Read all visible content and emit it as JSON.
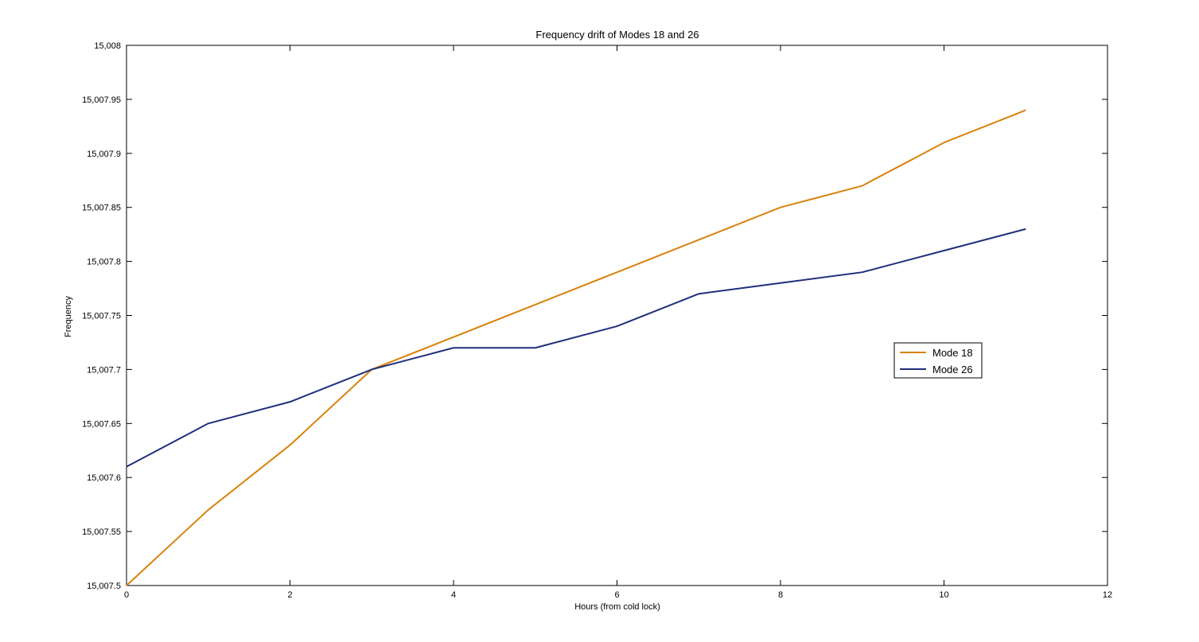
{
  "chart_data": {
    "type": "line",
    "title": "Frequency drift of Modes 18 and 26",
    "xlabel": "Hours (from cold lock)",
    "ylabel": "Frequency",
    "xlim": [
      0,
      12
    ],
    "ylim": [
      15007.5,
      15008
    ],
    "x_ticks": [
      0,
      2,
      4,
      6,
      8,
      10,
      12
    ],
    "y_ticks": [
      15007.5,
      15007.55,
      15007.6,
      15007.65,
      15007.7,
      15007.75,
      15007.8,
      15007.85,
      15007.9,
      15007.95,
      15008
    ],
    "x_tick_labels": [
      "0",
      "2",
      "4",
      "6",
      "8",
      "10",
      "12"
    ],
    "y_tick_labels": [
      "15,007.5",
      "15,007.55",
      "15,007.6",
      "15,007.65",
      "15,007.7",
      "15,007.75",
      "15,007.8",
      "15,007.85",
      "15,007.9",
      "15,007.95",
      "15,008"
    ],
    "grid": false,
    "legend_position": "right",
    "x": [
      0,
      1,
      2,
      3,
      4,
      5,
      6,
      7,
      8,
      9,
      10,
      11
    ],
    "series": [
      {
        "name": "Mode 18",
        "color": "#d9820c",
        "values": [
          15007.5,
          15007.57,
          15007.63,
          15007.7,
          15007.73,
          15007.76,
          15007.79,
          15007.82,
          15007.85,
          15007.87,
          15007.91,
          15007.94
        ]
      },
      {
        "name": "Mode 26",
        "color": "#1f2f7a",
        "values": [
          15007.61,
          15007.65,
          15007.67,
          15007.7,
          15007.72,
          15007.72,
          15007.74,
          15007.77,
          15007.78,
          15007.79,
          15007.81,
          15007.83
        ]
      }
    ]
  }
}
